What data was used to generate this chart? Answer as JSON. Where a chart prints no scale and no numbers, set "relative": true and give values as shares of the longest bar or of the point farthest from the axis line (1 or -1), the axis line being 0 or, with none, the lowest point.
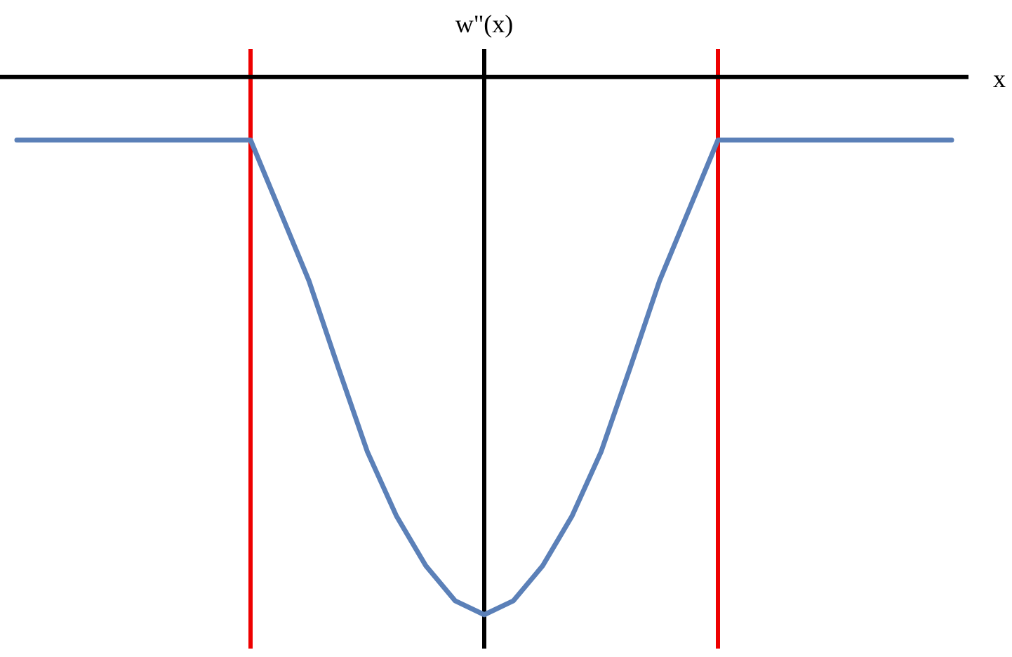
{
  "chart_data": {
    "type": "line",
    "relative": true,
    "ylabel": "w\"(x)",
    "xlabel": "x",
    "categories": [
      null,
      null,
      null,
      null,
      null,
      null,
      null,
      null,
      null,
      null,
      null,
      null,
      null,
      null,
      null,
      null,
      null,
      null,
      null,
      null,
      null,
      null,
      null,
      null,
      null,
      null,
      null,
      null,
      null,
      null,
      null,
      null,
      null
    ],
    "series": [
      {
        "color": "#5b80b8",
        "values": [
          -0.117,
          -0.117,
          -0.117,
          -0.117,
          -0.117,
          -0.117,
          -0.117,
          -0.117,
          -0.117,
          -0.248,
          -0.379,
          -0.54,
          -0.697,
          -0.817,
          -0.909,
          -0.974,
          -1,
          -0.974,
          -0.909,
          -0.817,
          -0.697,
          -0.54,
          -0.379,
          -0.248,
          -0.117,
          -0.117,
          -0.117,
          -0.117,
          -0.117,
          -0.117,
          -0.117,
          -0.117,
          -0.117
        ]
      }
    ]
  }
}
